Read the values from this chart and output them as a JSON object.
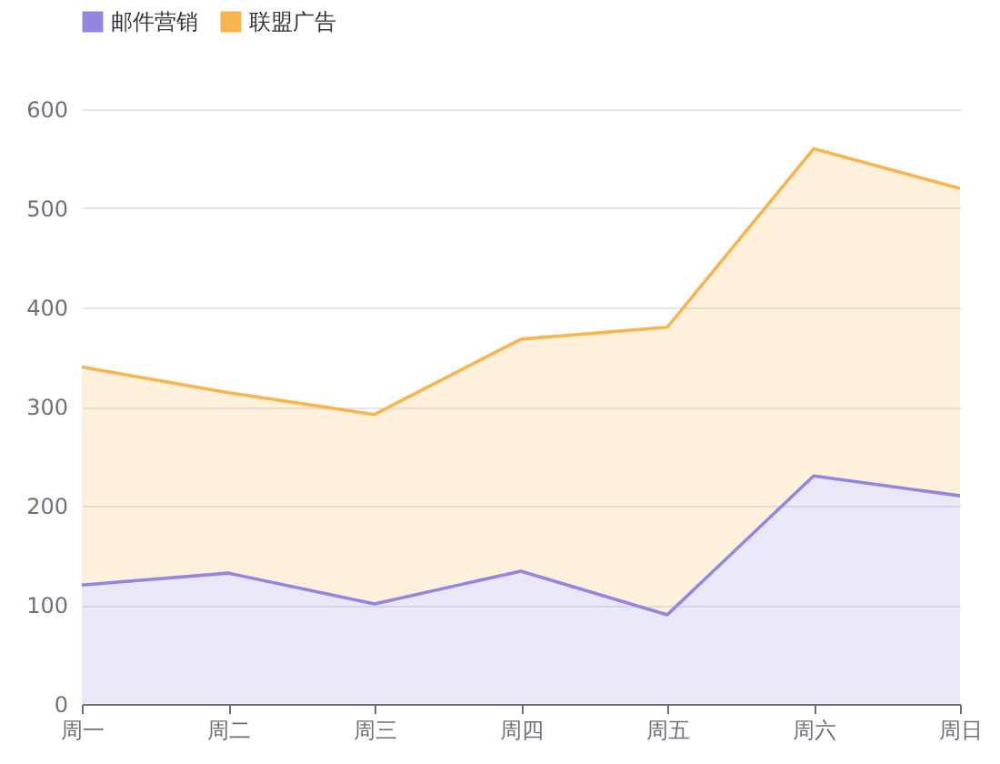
{
  "chart_data": {
    "type": "area",
    "stacked": true,
    "categories": [
      "周一",
      "周二",
      "周三",
      "周四",
      "周五",
      "周六",
      "周日"
    ],
    "series": [
      {
        "name": "邮件营销",
        "color": "#9485e0",
        "values": [
          120,
          132,
          101,
          134,
          90,
          230,
          210
        ]
      },
      {
        "name": "联盟广告",
        "color": "#f8b54d",
        "values": [
          220,
          182,
          191,
          234,
          290,
          330,
          310
        ]
      }
    ],
    "ylim": [
      0,
      600
    ],
    "yticks": [
      0,
      100,
      200,
      300,
      400,
      500,
      600
    ],
    "grid": "y",
    "legend": "top",
    "line_style": "solid",
    "marker": "none"
  }
}
